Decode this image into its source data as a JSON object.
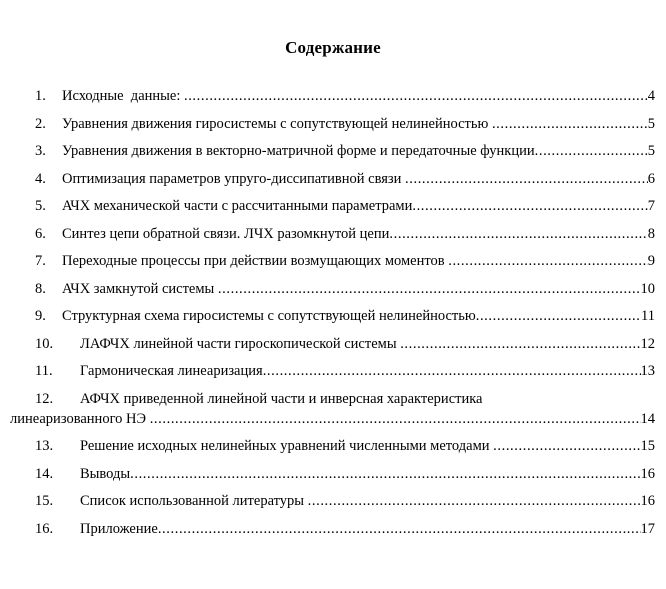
{
  "document": {
    "title": "Содержание"
  },
  "toc": {
    "title": "Содержание",
    "items": [
      {
        "num": "1.",
        "text": "Исходные  данные: ",
        "page": "4"
      },
      {
        "num": "2.",
        "text": "Уравнения движения гиросистемы с сопутствующей нелинейностью ",
        "page": "5"
      },
      {
        "num": "3.",
        "text": "Уравнения движения в векторно-матричной форме и передаточные функции",
        "page": "5"
      },
      {
        "num": "4.",
        "text": "Оптимизация параметров упруго-диссипативной связи ",
        "page": "6"
      },
      {
        "num": "5.",
        "text": "АЧХ механической части с рассчитанными параметрами",
        "page": "7"
      },
      {
        "num": "6.",
        "text": "Синтез цепи обратной связи. ЛЧХ разомкнутой цепи",
        "page": "8"
      },
      {
        "num": "7.",
        "text": "Переходные процессы при действии возмущающих моментов ",
        "page": "9"
      },
      {
        "num": "8.",
        "text": "АЧХ замкнутой системы ",
        "page": "10"
      },
      {
        "num": "9.",
        "text": "Структурная схема гиросистемы с сопутствующей нелинейностью",
        "page": "11"
      },
      {
        "num": "10.",
        "text": "ЛАФЧХ линейной части гироскопической системы ",
        "page": "12"
      },
      {
        "num": "11.",
        "text": "Гармоническая линеаризация",
        "page": "13"
      },
      {
        "num": "12.",
        "text": "АФЧХ приведенной линейной части и инверсная характеристика",
        "text2": "линеаризованного НЭ ",
        "page": "14"
      },
      {
        "num": "13.",
        "text": "Решение исходных нелинейных уравнений численными методами ",
        "page": "15"
      },
      {
        "num": "14.",
        "text": "Выводы",
        "page": "16"
      },
      {
        "num": "15.",
        "text": "Список использованной литературы ",
        "page": "16"
      },
      {
        "num": "16.",
        "text": "Приложение",
        "page": "17"
      }
    ]
  }
}
